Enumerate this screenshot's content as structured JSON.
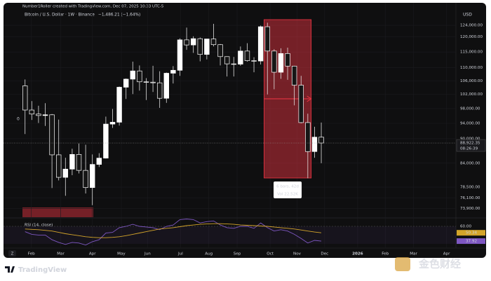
{
  "header": {
    "credit": "Number1Roller created with TradingView.com, Dec 07, 2025 10:33 UTC-5",
    "symbol": "Bitcoin / U.S. Dollar · 1W · Binance",
    "change": "−1,486.21 (−1.64%)",
    "currency": "USD",
    "left_marker": "0",
    "zoom": "Z"
  },
  "footer": {
    "brand": "TradingView",
    "watermark": "金色财经"
  },
  "chart_data": [
    {
      "type": "candlestick",
      "log_scale": true,
      "grid": true,
      "up_color": "#ffffff",
      "down_color": "#161616",
      "wick_color": "#e0e0e0",
      "categories": [
        null,
        null,
        null,
        null,
        null,
        null,
        null,
        null,
        null,
        null,
        null,
        null,
        null,
        null,
        null,
        null,
        null,
        null,
        null,
        null,
        null,
        null,
        null,
        null,
        null,
        null,
        null,
        null,
        null,
        null,
        null,
        null,
        null,
        null,
        null,
        null,
        null,
        null,
        null,
        null,
        null,
        null,
        null,
        null,
        null
      ],
      "open": [
        104500,
        97600,
        96500,
        96100,
        96300,
        86000,
        80700,
        82600,
        86100,
        82300,
        78400,
        83700,
        85200,
        93800,
        94300,
        104100,
        106500,
        109000,
        105700,
        105600,
        105400,
        100900,
        108300,
        109200,
        119000,
        117300,
        119400,
        114200,
        119300,
        117400,
        113500,
        111200,
        111100,
        115300,
        112200,
        112100,
        123500,
        115300,
        108600,
        114500,
        110500,
        104700,
        94200,
        86800,
        90400
      ],
      "high": [
        106400,
        100100,
        98800,
        99500,
        96500,
        95000,
        85300,
        87500,
        88800,
        88500,
        86100,
        86400,
        95800,
        97900,
        104300,
        106700,
        111900,
        110700,
        106800,
        110600,
        108900,
        108500,
        110500,
        119500,
        123200,
        120200,
        119800,
        119300,
        124500,
        117600,
        113600,
        113400,
        116800,
        117900,
        113300,
        123900,
        124900,
        115900,
        116200,
        116400,
        110600,
        107500,
        96600,
        93100,
        94200
      ],
      "low": [
        91200,
        94900,
        94100,
        93300,
        78300,
        80000,
        76600,
        81200,
        81600,
        77100,
        74600,
        83100,
        85100,
        92800,
        93400,
        100700,
        102100,
        103100,
        100400,
        102700,
        98200,
        99600,
        105200,
        107500,
        115700,
        114700,
        112000,
        112600,
        116800,
        110700,
        107300,
        107300,
        110600,
        111900,
        108600,
        111000,
        102000,
        103500,
        106600,
        106300,
        98900,
        94000,
        80500,
        85300,
        84000
      ],
      "close": [
        97600,
        96500,
        96100,
        96300,
        86000,
        80700,
        82600,
        86100,
        82300,
        78400,
        83700,
        85200,
        93800,
        94300,
        104100,
        106500,
        109000,
        105700,
        105600,
        105400,
        100900,
        108300,
        109200,
        119000,
        117300,
        119400,
        114200,
        119300,
        117400,
        113500,
        111200,
        111100,
        115300,
        112200,
        112100,
        123500,
        115300,
        108600,
        114500,
        110500,
        104700,
        94200,
        86800,
        90400,
        88922.35
      ],
      "price_label": {
        "value": 88922.35,
        "label": "88,922.35"
      },
      "countdown": "08:26:39",
      "xlim": [
        -3.2,
        64
      ],
      "ylim": [
        72100,
        126000
      ],
      "xticks": [
        {
          "value": 0.94,
          "label": "Feb"
        },
        {
          "value": 5.3,
          "label": "Mar"
        },
        {
          "value": 10,
          "label": "Apr"
        },
        {
          "value": 14.3,
          "label": "May"
        },
        {
          "value": 18.2,
          "label": "Jun"
        },
        {
          "value": 23.1,
          "label": "Jul"
        },
        {
          "value": 27.3,
          "label": "Aug"
        },
        {
          "value": 31.5,
          "label": "Sep"
        },
        {
          "value": 36.4,
          "label": "Oct"
        },
        {
          "value": 40.4,
          "label": "Nov"
        },
        {
          "value": 44.5,
          "label": "Dec"
        },
        {
          "value": 49.4,
          "label": "2026"
        },
        {
          "value": 53.5,
          "label": "Feb"
        },
        {
          "value": 57.7,
          "label": "Mar"
        },
        {
          "value": 62.6,
          "label": "Apr"
        }
      ],
      "yticks": [
        {
          "value": 124000,
          "label": "124,000.00"
        },
        {
          "value": 120000,
          "label": "120,000.00"
        },
        {
          "value": 115000,
          "label": "115,000.00"
        },
        {
          "value": 110000,
          "label": "110,000.00"
        },
        {
          "value": 106000,
          "label": "106,000.00"
        },
        {
          "value": 102000,
          "label": "102,000.00"
        },
        {
          "value": 98000,
          "label": "98,000.00"
        },
        {
          "value": 94000,
          "label": "94,000.00"
        },
        {
          "value": 90000,
          "label": "90,000.00"
        },
        {
          "value": 84000,
          "label": "84,000.00"
        },
        {
          "value": 78500,
          "label": "78,500.00"
        },
        {
          "value": 76100,
          "label": "76,100.00"
        },
        {
          "value": 73900,
          "label": "73,900.00"
        }
      ],
      "range_annotation": {
        "start": 36,
        "end": 42,
        "bars": "6 bars, 42d",
        "volume": "Vol 22.52K",
        "color": "#f23645"
      }
    },
    {
      "type": "line",
      "title": "RSI (14, close)",
      "ylim": [
        29.6,
        71.5
      ],
      "yticks": [
        {
          "value": 60,
          "label": "60.00"
        }
      ],
      "series": [
        {
          "name": "RSI",
          "color": "#7e57c2",
          "values": [
            52,
            48,
            47,
            47,
            40,
            36,
            33,
            36,
            35,
            32,
            37,
            40,
            50,
            51,
            58,
            60,
            63,
            60,
            59,
            58,
            55,
            60,
            62,
            70,
            71,
            70,
            65,
            67,
            68,
            62,
            58,
            57,
            60,
            60,
            57,
            65,
            58,
            53,
            55,
            53,
            48,
            42,
            35,
            39,
            37.92
          ],
          "last_label": "37.92"
        },
        {
          "name": "RSI-based MA",
          "color": "#d4a52a",
          "values": [
            56,
            55.5,
            55,
            54,
            53,
            51,
            49,
            47.5,
            46,
            44.5,
            43.5,
            43,
            43,
            43.5,
            44.5,
            46,
            48,
            50,
            52,
            54,
            56,
            57,
            58,
            59.5,
            61,
            62,
            63,
            63.5,
            64,
            64,
            63.5,
            63,
            62,
            61.5,
            61,
            60.5,
            60,
            59,
            58,
            57,
            56,
            54.5,
            53,
            51.5,
            50.34
          ],
          "last_label": "50.34"
        }
      ]
    }
  ]
}
